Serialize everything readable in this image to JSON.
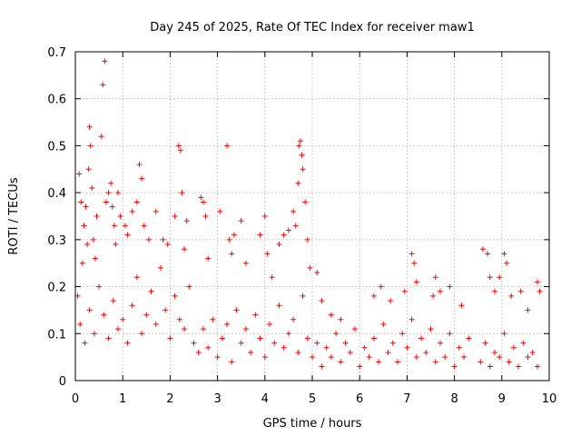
{
  "chart_data": {
    "type": "scatter",
    "title": "Day 245 of 2025, Rate Of TEC Index for receiver maw1",
    "xlabel": "GPS time / hours",
    "ylabel": "ROTI / TECUs",
    "xlim": [
      0,
      10
    ],
    "ylim": [
      0,
      0.7
    ],
    "x_ticks": [
      "0",
      "1",
      "2",
      "3",
      "4",
      "5",
      "6",
      "7",
      "8",
      "9",
      "10"
    ],
    "y_ticks": [
      "0",
      "0.1",
      "0.2",
      "0.3",
      "0.4",
      "0.5",
      "0.6",
      "0.7"
    ],
    "grid": true,
    "marker": "+",
    "color": "#ff0000",
    "series": [
      {
        "name": "ROTI",
        "points": [
          [
            0.05,
            0.18
          ],
          [
            0.08,
            0.44
          ],
          [
            0.12,
            0.38
          ],
          [
            0.15,
            0.25
          ],
          [
            0.18,
            0.33
          ],
          [
            0.22,
            0.37
          ],
          [
            0.25,
            0.29
          ],
          [
            0.28,
            0.45
          ],
          [
            0.3,
            0.54
          ],
          [
            0.32,
            0.5
          ],
          [
            0.35,
            0.41
          ],
          [
            0.38,
            0.3
          ],
          [
            0.42,
            0.26
          ],
          [
            0.45,
            0.35
          ],
          [
            0.55,
            0.52
          ],
          [
            0.58,
            0.63
          ],
          [
            0.62,
            0.68
          ],
          [
            0.65,
            0.38
          ],
          [
            0.7,
            0.4
          ],
          [
            0.75,
            0.42
          ],
          [
            0.78,
            0.37
          ],
          [
            0.82,
            0.33
          ],
          [
            0.85,
            0.29
          ],
          [
            0.9,
            0.4
          ],
          [
            0.95,
            0.35
          ],
          [
            1.05,
            0.33
          ],
          [
            1.1,
            0.31
          ],
          [
            1.2,
            0.36
          ],
          [
            1.3,
            0.38
          ],
          [
            1.35,
            0.46
          ],
          [
            1.4,
            0.43
          ],
          [
            1.45,
            0.33
          ],
          [
            1.55,
            0.3
          ],
          [
            1.7,
            0.36
          ],
          [
            1.85,
            0.3
          ],
          [
            1.95,
            0.29
          ],
          [
            2.1,
            0.35
          ],
          [
            2.18,
            0.5
          ],
          [
            2.22,
            0.49
          ],
          [
            2.25,
            0.4
          ],
          [
            2.3,
            0.28
          ],
          [
            2.35,
            0.34
          ],
          [
            2.65,
            0.39
          ],
          [
            2.7,
            0.38
          ],
          [
            2.75,
            0.35
          ],
          [
            2.8,
            0.26
          ],
          [
            3.05,
            0.36
          ],
          [
            3.2,
            0.5
          ],
          [
            3.25,
            0.3
          ],
          [
            3.3,
            0.27
          ],
          [
            3.35,
            0.31
          ],
          [
            3.5,
            0.34
          ],
          [
            3.6,
            0.25
          ],
          [
            3.9,
            0.31
          ],
          [
            4.0,
            0.35
          ],
          [
            4.05,
            0.27
          ],
          [
            4.15,
            0.22
          ],
          [
            4.3,
            0.29
          ],
          [
            4.4,
            0.31
          ],
          [
            4.5,
            0.32
          ],
          [
            4.6,
            0.36
          ],
          [
            4.65,
            0.33
          ],
          [
            4.7,
            0.42
          ],
          [
            4.72,
            0.5
          ],
          [
            4.75,
            0.51
          ],
          [
            4.78,
            0.48
          ],
          [
            4.8,
            0.45
          ],
          [
            4.85,
            0.38
          ],
          [
            4.9,
            0.3
          ],
          [
            4.95,
            0.24
          ],
          [
            5.1,
            0.23
          ],
          [
            5.2,
            0.17
          ],
          [
            5.4,
            0.14
          ],
          [
            5.6,
            0.13
          ],
          [
            6.3,
            0.18
          ],
          [
            6.45,
            0.2
          ],
          [
            6.65,
            0.17
          ],
          [
            6.95,
            0.19
          ],
          [
            7.1,
            0.27
          ],
          [
            7.15,
            0.25
          ],
          [
            7.2,
            0.21
          ],
          [
            7.55,
            0.18
          ],
          [
            7.6,
            0.22
          ],
          [
            7.7,
            0.19
          ],
          [
            7.9,
            0.2
          ],
          [
            8.15,
            0.16
          ],
          [
            8.6,
            0.28
          ],
          [
            8.7,
            0.27
          ],
          [
            8.75,
            0.22
          ],
          [
            8.85,
            0.19
          ],
          [
            8.95,
            0.22
          ],
          [
            9.05,
            0.27
          ],
          [
            9.1,
            0.25
          ],
          [
            9.2,
            0.18
          ],
          [
            9.4,
            0.19
          ],
          [
            9.55,
            0.15
          ],
          [
            9.75,
            0.21
          ],
          [
            9.8,
            0.19
          ],
          [
            0.1,
            0.12
          ],
          [
            0.2,
            0.08
          ],
          [
            0.3,
            0.15
          ],
          [
            0.4,
            0.1
          ],
          [
            0.5,
            0.2
          ],
          [
            0.6,
            0.14
          ],
          [
            0.7,
            0.09
          ],
          [
            0.8,
            0.17
          ],
          [
            0.9,
            0.11
          ],
          [
            1.0,
            0.13
          ],
          [
            1.1,
            0.08
          ],
          [
            1.2,
            0.16
          ],
          [
            1.3,
            0.22
          ],
          [
            1.4,
            0.1
          ],
          [
            1.5,
            0.14
          ],
          [
            1.6,
            0.19
          ],
          [
            1.7,
            0.12
          ],
          [
            1.8,
            0.24
          ],
          [
            1.9,
            0.15
          ],
          [
            2.0,
            0.09
          ],
          [
            2.1,
            0.18
          ],
          [
            2.2,
            0.13
          ],
          [
            2.3,
            0.11
          ],
          [
            2.4,
            0.2
          ],
          [
            2.5,
            0.08
          ],
          [
            2.6,
            0.06
          ],
          [
            2.7,
            0.11
          ],
          [
            2.8,
            0.07
          ],
          [
            2.9,
            0.13
          ],
          [
            3.0,
            0.05
          ],
          [
            3.1,
            0.09
          ],
          [
            3.2,
            0.12
          ],
          [
            3.3,
            0.04
          ],
          [
            3.4,
            0.15
          ],
          [
            3.5,
            0.08
          ],
          [
            3.6,
            0.11
          ],
          [
            3.7,
            0.06
          ],
          [
            3.8,
            0.14
          ],
          [
            3.9,
            0.09
          ],
          [
            4.0,
            0.05
          ],
          [
            4.1,
            0.12
          ],
          [
            4.2,
            0.08
          ],
          [
            4.3,
            0.16
          ],
          [
            4.4,
            0.07
          ],
          [
            4.5,
            0.1
          ],
          [
            4.6,
            0.13
          ],
          [
            4.7,
            0.06
          ],
          [
            4.8,
            0.18
          ],
          [
            4.9,
            0.09
          ],
          [
            5.0,
            0.05
          ],
          [
            5.1,
            0.08
          ],
          [
            5.2,
            0.03
          ],
          [
            5.3,
            0.07
          ],
          [
            5.4,
            0.05
          ],
          [
            5.5,
            0.1
          ],
          [
            5.6,
            0.04
          ],
          [
            5.7,
            0.08
          ],
          [
            5.8,
            0.06
          ],
          [
            5.9,
            0.11
          ],
          [
            6.0,
            0.03
          ],
          [
            6.1,
            0.07
          ],
          [
            6.2,
            0.05
          ],
          [
            6.3,
            0.09
          ],
          [
            6.4,
            0.04
          ],
          [
            6.5,
            0.12
          ],
          [
            6.6,
            0.06
          ],
          [
            6.7,
            0.08
          ],
          [
            6.8,
            0.04
          ],
          [
            6.9,
            0.1
          ],
          [
            7.0,
            0.07
          ],
          [
            7.1,
            0.13
          ],
          [
            7.2,
            0.05
          ],
          [
            7.3,
            0.09
          ],
          [
            7.4,
            0.06
          ],
          [
            7.5,
            0.11
          ],
          [
            7.6,
            0.04
          ],
          [
            7.7,
            0.08
          ],
          [
            7.8,
            0.05
          ],
          [
            7.9,
            0.1
          ],
          [
            8.0,
            0.03
          ],
          [
            8.1,
            0.07
          ],
          [
            8.2,
            0.05
          ],
          [
            8.3,
            0.09
          ],
          [
            8.55,
            0.04
          ],
          [
            8.65,
            0.08
          ],
          [
            8.75,
            0.03
          ],
          [
            8.85,
            0.06
          ],
          [
            8.95,
            0.05
          ],
          [
            9.05,
            0.1
          ],
          [
            9.15,
            0.04
          ],
          [
            9.25,
            0.07
          ],
          [
            9.35,
            0.03
          ],
          [
            9.45,
            0.08
          ],
          [
            9.55,
            0.05
          ],
          [
            9.65,
            0.06
          ],
          [
            9.75,
            0.03
          ]
        ]
      }
    ]
  }
}
